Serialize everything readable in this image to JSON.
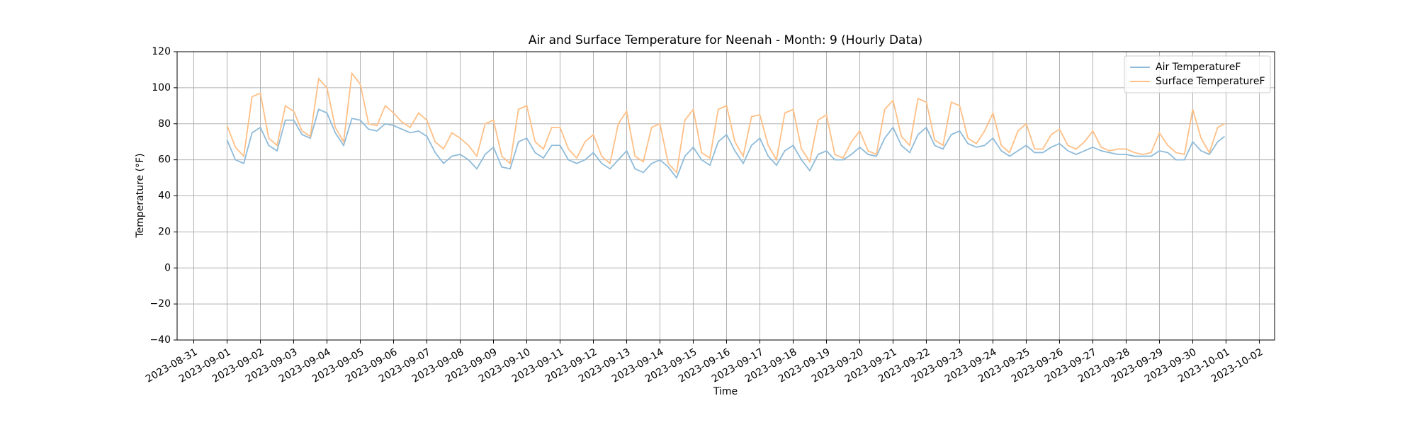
{
  "chart_data": {
    "type": "line",
    "title": "Air and Surface Temperature for Neenah - Month: 9 (Hourly Data)",
    "x_label": "Time",
    "y_label": "Temperature (°F)",
    "x": [
      "2023-09-01 00:00",
      "2023-09-01 06:00",
      "2023-09-01 12:00",
      "2023-09-01 18:00",
      "2023-09-02 00:00",
      "2023-09-02 06:00",
      "2023-09-02 12:00",
      "2023-09-02 18:00",
      "2023-09-03 00:00",
      "2023-09-03 06:00",
      "2023-09-03 12:00",
      "2023-09-03 18:00",
      "2023-09-04 00:00",
      "2023-09-04 06:00",
      "2023-09-04 12:00",
      "2023-09-04 18:00",
      "2023-09-05 00:00",
      "2023-09-05 06:00",
      "2023-09-05 12:00",
      "2023-09-05 18:00",
      "2023-09-06 00:00",
      "2023-09-06 06:00",
      "2023-09-06 12:00",
      "2023-09-06 18:00",
      "2023-09-07 00:00",
      "2023-09-07 06:00",
      "2023-09-07 12:00",
      "2023-09-07 18:00",
      "2023-09-08 00:00",
      "2023-09-08 06:00",
      "2023-09-08 12:00",
      "2023-09-08 18:00",
      "2023-09-09 00:00",
      "2023-09-09 06:00",
      "2023-09-09 12:00",
      "2023-09-09 18:00",
      "2023-09-10 00:00",
      "2023-09-10 06:00",
      "2023-09-10 12:00",
      "2023-09-10 18:00",
      "2023-09-11 00:00",
      "2023-09-11 06:00",
      "2023-09-11 12:00",
      "2023-09-11 18:00",
      "2023-09-12 00:00",
      "2023-09-12 06:00",
      "2023-09-12 12:00",
      "2023-09-12 18:00",
      "2023-09-13 00:00",
      "2023-09-13 06:00",
      "2023-09-13 12:00",
      "2023-09-13 18:00",
      "2023-09-14 00:00",
      "2023-09-14 06:00",
      "2023-09-14 12:00",
      "2023-09-14 18:00",
      "2023-09-15 00:00",
      "2023-09-15 06:00",
      "2023-09-15 12:00",
      "2023-09-15 18:00",
      "2023-09-16 00:00",
      "2023-09-16 06:00",
      "2023-09-16 12:00",
      "2023-09-16 18:00",
      "2023-09-17 00:00",
      "2023-09-17 06:00",
      "2023-09-17 12:00",
      "2023-09-17 18:00",
      "2023-09-18 00:00",
      "2023-09-18 06:00",
      "2023-09-18 12:00",
      "2023-09-18 18:00",
      "2023-09-19 00:00",
      "2023-09-19 06:00",
      "2023-09-19 12:00",
      "2023-09-19 18:00",
      "2023-09-20 00:00",
      "2023-09-20 06:00",
      "2023-09-20 12:00",
      "2023-09-20 18:00",
      "2023-09-21 00:00",
      "2023-09-21 06:00",
      "2023-09-21 12:00",
      "2023-09-21 18:00",
      "2023-09-22 00:00",
      "2023-09-22 06:00",
      "2023-09-22 12:00",
      "2023-09-22 18:00",
      "2023-09-23 00:00",
      "2023-09-23 06:00",
      "2023-09-23 12:00",
      "2023-09-23 18:00",
      "2023-09-24 00:00",
      "2023-09-24 06:00",
      "2023-09-24 12:00",
      "2023-09-24 18:00",
      "2023-09-25 00:00",
      "2023-09-25 06:00",
      "2023-09-25 12:00",
      "2023-09-25 18:00",
      "2023-09-26 00:00",
      "2023-09-26 06:00",
      "2023-09-26 12:00",
      "2023-09-26 18:00",
      "2023-09-27 00:00",
      "2023-09-27 06:00",
      "2023-09-27 12:00",
      "2023-09-27 18:00",
      "2023-09-28 00:00",
      "2023-09-28 06:00",
      "2023-09-28 12:00",
      "2023-09-28 18:00",
      "2023-09-29 00:00",
      "2023-09-29 06:00",
      "2023-09-29 12:00",
      "2023-09-29 18:00",
      "2023-09-30 00:00",
      "2023-09-30 06:00",
      "2023-09-30 12:00",
      "2023-09-30 18:00",
      "2023-09-30 23:00"
    ],
    "series": [
      {
        "name": "Air TemperatureF",
        "color": "#8fbbd9",
        "values": [
          71,
          60,
          58,
          75,
          78,
          68,
          65,
          82,
          82,
          74,
          72,
          88,
          86,
          75,
          68,
          83,
          82,
          77,
          76,
          80,
          79,
          77,
          75,
          76,
          73,
          64,
          58,
          62,
          63,
          60,
          55,
          63,
          67,
          56,
          55,
          70,
          72,
          64,
          61,
          68,
          68,
          60,
          58,
          60,
          64,
          58,
          55,
          60,
          65,
          55,
          53,
          58,
          60,
          56,
          50,
          62,
          67,
          60,
          57,
          70,
          74,
          65,
          58,
          68,
          72,
          62,
          57,
          65,
          68,
          60,
          54,
          63,
          65,
          60,
          60,
          63,
          67,
          63,
          62,
          72,
          78,
          68,
          64,
          74,
          78,
          68,
          66,
          74,
          76,
          69,
          67,
          68,
          72,
          65,
          62,
          65,
          68,
          64,
          64,
          67,
          69,
          65,
          63,
          65,
          67,
          65,
          64,
          63,
          63,
          62,
          62,
          62,
          65,
          64,
          60,
          60,
          70,
          65,
          63,
          70,
          73
        ]
      },
      {
        "name": "Surface TemperatureF",
        "color": "#ffbf86",
        "values": [
          79,
          67,
          62,
          95,
          97,
          72,
          68,
          90,
          87,
          76,
          73,
          105,
          100,
          78,
          70,
          108,
          102,
          80,
          79,
          90,
          86,
          81,
          78,
          86,
          82,
          70,
          66,
          75,
          72,
          68,
          62,
          80,
          82,
          62,
          58,
          88,
          90,
          70,
          66,
          78,
          78,
          66,
          61,
          70,
          74,
          62,
          58,
          80,
          87,
          62,
          59,
          78,
          80,
          58,
          53,
          82,
          88,
          64,
          61,
          88,
          90,
          70,
          62,
          84,
          85,
          68,
          60,
          86,
          88,
          66,
          59,
          82,
          85,
          63,
          61,
          70,
          76,
          65,
          63,
          88,
          93,
          73,
          68,
          94,
          92,
          71,
          68,
          92,
          90,
          72,
          69,
          76,
          86,
          68,
          64,
          76,
          80,
          66,
          66,
          74,
          77,
          68,
          66,
          70,
          76,
          67,
          65,
          66,
          66,
          64,
          63,
          64,
          75,
          68,
          64,
          63,
          88,
          72,
          64,
          78,
          80
        ]
      }
    ],
    "xlim": [
      "2023-08-30 12:00",
      "2023-10-02 11:00"
    ],
    "xticks": [
      "2023-08-31",
      "2023-09-01",
      "2023-09-02",
      "2023-09-03",
      "2023-09-04",
      "2023-09-05",
      "2023-09-06",
      "2023-09-07",
      "2023-09-08",
      "2023-09-09",
      "2023-09-10",
      "2023-09-11",
      "2023-09-12",
      "2023-09-13",
      "2023-09-14",
      "2023-09-15",
      "2023-09-16",
      "2023-09-17",
      "2023-09-18",
      "2023-09-19",
      "2023-09-20",
      "2023-09-21",
      "2023-09-22",
      "2023-09-23",
      "2023-09-24",
      "2023-09-25",
      "2023-09-26",
      "2023-09-27",
      "2023-09-28",
      "2023-09-29",
      "2023-09-30",
      "2023-10-01",
      "2023-10-02"
    ],
    "ylim": [
      -40,
      120
    ],
    "yticks": [
      {
        "value": -40,
        "label": "−40"
      },
      {
        "value": -20,
        "label": "−20"
      },
      0,
      20,
      40,
      60,
      80,
      100,
      120
    ],
    "grid": true,
    "legend": "upper right"
  }
}
